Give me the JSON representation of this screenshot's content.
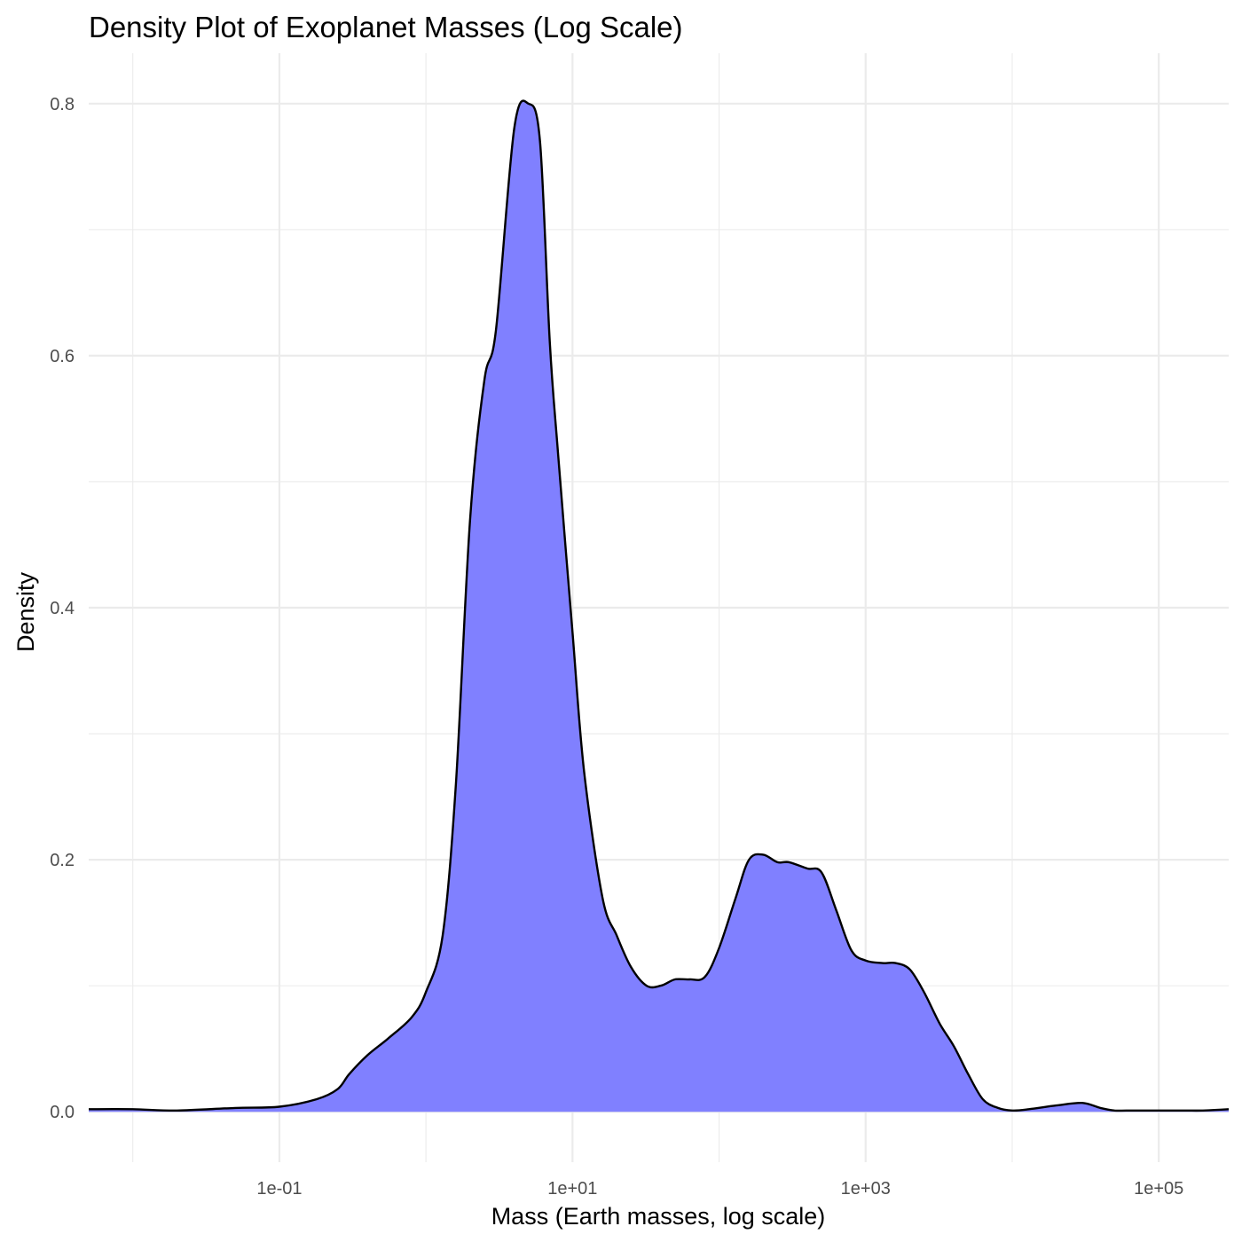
{
  "chart_data": {
    "type": "area",
    "title": "Density Plot of Exoplanet Masses (Log Scale)",
    "xlabel": "Mass (Earth masses, log scale)",
    "ylabel": "Density",
    "x_scale": "log10",
    "xlim": [
      0.005,
      300000
    ],
    "ylim": [
      -0.04,
      0.84
    ],
    "grid": true,
    "legend": "none",
    "fill_color": "#8080ff",
    "line_color": "#000000",
    "x_ticks": [
      {
        "value": 0.1,
        "label": "1e-01"
      },
      {
        "value": 10,
        "label": "1e+01"
      },
      {
        "value": 1000,
        "label": "1e+03"
      },
      {
        "value": 100000,
        "label": "1e+05"
      }
    ],
    "x_minor_ticks": [
      0.01,
      1,
      100,
      10000
    ],
    "y_ticks": [
      {
        "value": 0.0,
        "label": "0.0"
      },
      {
        "value": 0.2,
        "label": "0.2"
      },
      {
        "value": 0.4,
        "label": "0.4"
      },
      {
        "value": 0.6,
        "label": "0.6"
      },
      {
        "value": 0.8,
        "label": "0.8"
      }
    ],
    "y_minor_ticks": [
      0.1,
      0.3,
      0.5,
      0.7
    ],
    "series": [
      {
        "x": [
          0.005,
          0.01,
          0.02,
          0.05,
          0.1,
          0.18,
          0.25,
          0.3,
          0.4,
          0.55,
          0.8,
          1.0,
          1.3,
          1.6,
          2.0,
          2.5,
          3.0,
          4.0,
          5.0,
          6.0,
          7.0,
          8.0,
          10.0,
          12.0,
          16.0,
          20.0,
          25.0,
          32.0,
          40.0,
          50.0,
          63.0,
          80.0,
          100.0,
          130.0,
          160.0,
          200.0,
          250.0,
          300.0,
          400.0,
          500.0,
          630.0,
          800.0,
          1000.0,
          1300.0,
          1600.0,
          2000.0,
          2500.0,
          3200.0,
          4000.0,
          5000.0,
          6300.0,
          8000.0,
          10000.0,
          13000.0,
          20000.0,
          30000.0,
          40000.0,
          50000.0,
          60000.0,
          80000.0,
          100000.0,
          150000.0,
          200000.0,
          300000.0
        ],
        "y": [
          0.002,
          0.002,
          0.001,
          0.003,
          0.004,
          0.01,
          0.018,
          0.03,
          0.045,
          0.058,
          0.075,
          0.095,
          0.14,
          0.26,
          0.47,
          0.58,
          0.62,
          0.78,
          0.8,
          0.77,
          0.61,
          0.52,
          0.38,
          0.27,
          0.17,
          0.14,
          0.115,
          0.1,
          0.1,
          0.105,
          0.105,
          0.107,
          0.13,
          0.17,
          0.2,
          0.204,
          0.198,
          0.198,
          0.193,
          0.19,
          0.16,
          0.128,
          0.12,
          0.118,
          0.118,
          0.113,
          0.095,
          0.07,
          0.052,
          0.03,
          0.01,
          0.003,
          0.001,
          0.002,
          0.005,
          0.007,
          0.003,
          0.001,
          0.001,
          0.001,
          0.001,
          0.001,
          0.001,
          0.002
        ]
      }
    ]
  }
}
